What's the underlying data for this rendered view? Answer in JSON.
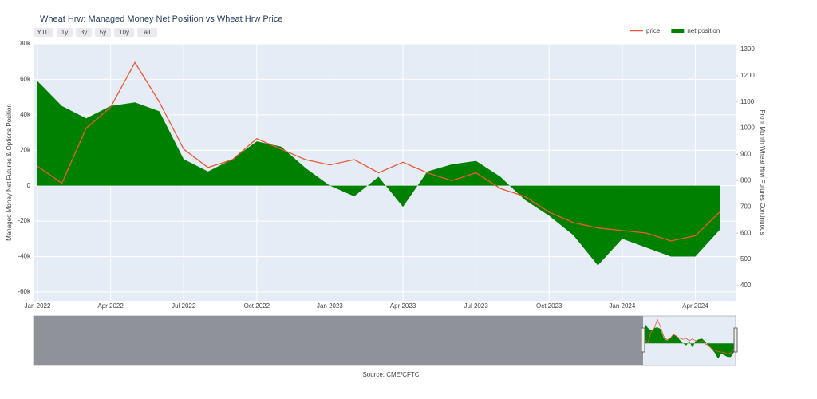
{
  "chart_data": {
    "type": "line",
    "title": "Wheat Hrw: Managed Money Net Position vs Wheat Hrw Price",
    "range_buttons": [
      "YTD",
      "1y",
      "3y",
      "5y",
      "10y",
      "all"
    ],
    "y_label": "Managed Money Net Futures & Options Position",
    "y2_label": "Front Month Wheat Hrw Futures Continuous",
    "source": "Source: CME/CFTC",
    "legend": "top right",
    "grid": true,
    "x": [
      "2022-01",
      "2022-02",
      "2022-03",
      "2022-04",
      "2022-05",
      "2022-06",
      "2022-07",
      "2022-08",
      "2022-09",
      "2022-10",
      "2022-11",
      "2022-12",
      "2023-01",
      "2023-02",
      "2023-03",
      "2023-04",
      "2023-05",
      "2023-06",
      "2023-07",
      "2023-08",
      "2023-09",
      "2023-10",
      "2023-11",
      "2023-12",
      "2024-01",
      "2024-02",
      "2024-03",
      "2024-04",
      "2024-05"
    ],
    "xlim": [
      "2022-01",
      "2024-05"
    ],
    "xticks": [
      {
        "value": "2022-01",
        "label": "Jan 2022"
      },
      {
        "value": "2022-04",
        "label": "Apr 2022"
      },
      {
        "value": "2022-07",
        "label": "Jul 2022"
      },
      {
        "value": "2022-10",
        "label": "Oct 2022"
      },
      {
        "value": "2023-01",
        "label": "Jan 2023"
      },
      {
        "value": "2023-04",
        "label": "Apr 2023"
      },
      {
        "value": "2023-07",
        "label": "Jul 2023"
      },
      {
        "value": "2023-10",
        "label": "Oct 2023"
      },
      {
        "value": "2024-01",
        "label": "Jan 2024"
      },
      {
        "value": "2024-04",
        "label": "Apr 2024"
      }
    ],
    "ylim": [
      -65000,
      80000
    ],
    "yticks": [
      {
        "value": -60000,
        "label": "-60k"
      },
      {
        "value": -40000,
        "label": "-40k"
      },
      {
        "value": -20000,
        "label": "-20k"
      },
      0,
      {
        "value": 20000,
        "label": "20k"
      },
      {
        "value": 40000,
        "label": "40k"
      },
      {
        "value": 60000,
        "label": "60k"
      },
      {
        "value": 80000,
        "label": "80k"
      }
    ],
    "y2lim": [
      342,
      1321
    ],
    "y2ticks": [
      400,
      500,
      600,
      700,
      800,
      900,
      1000,
      1100,
      1200,
      1300
    ],
    "series": [
      {
        "name": "price",
        "color": "#e8593a",
        "axis": "y2",
        "values": [
          855,
          790,
          1000,
          1080,
          1250,
          1100,
          920,
          850,
          880,
          960,
          920,
          880,
          860,
          880,
          830,
          870,
          830,
          800,
          830,
          770,
          740,
          680,
          640,
          620,
          610,
          600,
          570,
          590,
          680
        ]
      },
      {
        "name": "net position",
        "color": "#008000",
        "fill": "tozero",
        "values": [
          59000,
          45000,
          38000,
          45000,
          47000,
          42000,
          15000,
          8000,
          15000,
          25000,
          22000,
          10000,
          0,
          -6000,
          5000,
          -12000,
          8000,
          12000,
          14000,
          5000,
          -8000,
          -17000,
          -28000,
          -45000,
          -30000,
          -35000,
          -40000,
          -40000,
          -25000
        ]
      }
    ]
  }
}
